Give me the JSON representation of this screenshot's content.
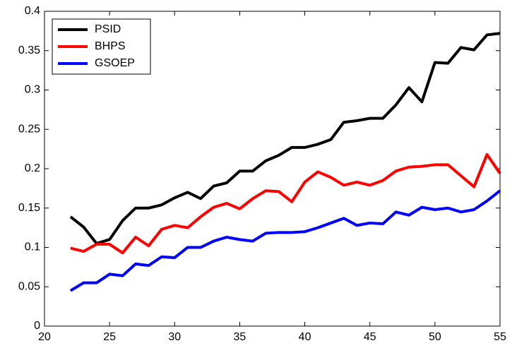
{
  "chart_data": {
    "type": "line",
    "x": [
      22,
      23,
      24,
      25,
      26,
      27,
      28,
      29,
      30,
      31,
      32,
      33,
      34,
      35,
      36,
      37,
      38,
      39,
      40,
      41,
      42,
      43,
      44,
      45,
      46,
      47,
      48,
      49,
      50,
      51,
      52,
      53,
      54,
      55
    ],
    "series": [
      {
        "name": "PSID",
        "color": "#000000",
        "values": [
          0.139,
          0.126,
          0.105,
          0.11,
          0.134,
          0.15,
          0.15,
          0.154,
          0.163,
          0.17,
          0.162,
          0.178,
          0.182,
          0.197,
          0.197,
          0.21,
          0.217,
          0.227,
          0.227,
          0.231,
          0.237,
          0.259,
          0.261,
          0.264,
          0.264,
          0.281,
          0.303,
          0.285,
          0.335,
          0.334,
          0.354,
          0.351,
          0.37,
          0.372
        ]
      },
      {
        "name": "BHPS",
        "color": "#ff0000",
        "values": [
          0.099,
          0.095,
          0.104,
          0.104,
          0.093,
          0.113,
          0.102,
          0.123,
          0.128,
          0.125,
          0.139,
          0.151,
          0.156,
          0.149,
          0.162,
          0.172,
          0.171,
          0.158,
          0.183,
          0.196,
          0.189,
          0.179,
          0.183,
          0.179,
          0.185,
          0.197,
          0.202,
          0.203,
          0.205,
          0.205,
          0.191,
          0.177,
          0.218,
          0.194
        ]
      },
      {
        "name": "GSOEP",
        "color": "#0000ff",
        "values": [
          0.045,
          0.055,
          0.055,
          0.066,
          0.064,
          0.079,
          0.077,
          0.088,
          0.087,
          0.1,
          0.1,
          0.108,
          0.113,
          0.11,
          0.108,
          0.118,
          0.119,
          0.119,
          0.12,
          0.125,
          0.131,
          0.137,
          0.128,
          0.131,
          0.13,
          0.145,
          0.141,
          0.151,
          0.148,
          0.15,
          0.145,
          0.148,
          0.159,
          0.172
        ]
      }
    ],
    "xlim": [
      20,
      55
    ],
    "xticks": [
      20,
      25,
      30,
      35,
      40,
      45,
      50,
      55
    ],
    "ylim": [
      0,
      0.4
    ],
    "yticks": [
      0,
      0.05,
      0.1,
      0.15,
      0.2,
      0.25,
      0.3,
      0.35,
      0.4
    ],
    "grid": false,
    "legend": "upper left"
  }
}
